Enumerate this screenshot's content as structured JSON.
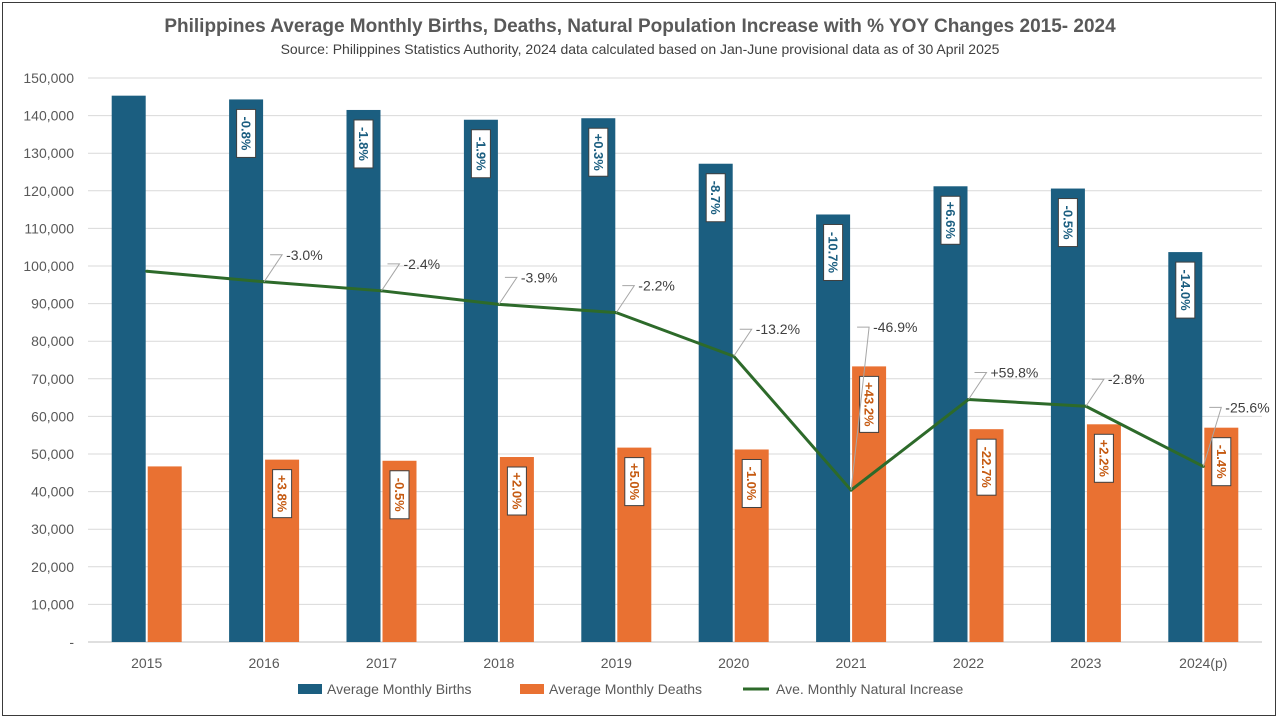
{
  "chart_data": {
    "type": "bar",
    "title": "Philippines Average Monthly Births, Deaths, Natural Population Increase with % YOY Changes 2015- 2024",
    "subtitle": "Source: Philippines Statistics Authority, 2024 data calculated based on Jan-June provisional data as of 30 April 2025",
    "categories": [
      "2015",
      "2016",
      "2017",
      "2018",
      "2019",
      "2020",
      "2021",
      "2022",
      "2023",
      "2024(p)"
    ],
    "ylim": [
      0,
      150000
    ],
    "y_ticks": [
      {
        "value": 0,
        "label": "-"
      },
      {
        "value": 10000,
        "label": "10,000"
      },
      {
        "value": 20000,
        "label": "20,000"
      },
      {
        "value": 30000,
        "label": "30,000"
      },
      {
        "value": 40000,
        "label": "40,000"
      },
      {
        "value": 50000,
        "label": "50,000"
      },
      {
        "value": 60000,
        "label": "60,000"
      },
      {
        "value": 70000,
        "label": "70,000"
      },
      {
        "value": 80000,
        "label": "80,000"
      },
      {
        "value": 90000,
        "label": "90,000"
      },
      {
        "value": 100000,
        "label": "100,000"
      },
      {
        "value": 110000,
        "label": "110,000"
      },
      {
        "value": 120000,
        "label": "120,000"
      },
      {
        "value": 130000,
        "label": "130,000"
      },
      {
        "value": 140000,
        "label": "140,000"
      },
      {
        "value": 150000,
        "label": "150,000"
      }
    ],
    "grid": true,
    "legend_position": "bottom",
    "series": [
      {
        "name": "Average Monthly Births",
        "kind": "bar",
        "color": "#1b5e80",
        "values": [
          145300,
          144300,
          141500,
          138900,
          139300,
          127200,
          113700,
          121200,
          120600,
          103700
        ],
        "labels": [
          "",
          "-0.8%",
          "-1.8%",
          "-1.9%",
          "+0.3%",
          "-8.7%",
          "-10.7%",
          "+6.6%",
          "-0.5%",
          "-14.0%"
        ]
      },
      {
        "name": "Average Monthly Deaths",
        "kind": "bar",
        "color": "#e97132",
        "values": [
          46700,
          48500,
          48200,
          49200,
          51700,
          51200,
          73300,
          56600,
          57900,
          57000
        ],
        "labels": [
          "",
          "+3.8%",
          "-0.5%",
          "+2.0%",
          "+5.0%",
          "-1.0%",
          "+43.2%",
          "-22.7%",
          "+2.2%",
          "-1.4%"
        ]
      },
      {
        "name": "Ave. Monthly Natural Increase",
        "kind": "line",
        "color": "#2d6a2a",
        "values": [
          98600,
          95800,
          93400,
          89800,
          87600,
          76000,
          40400,
          64500,
          62700,
          46700
        ],
        "labels": [
          "",
          "-3.0%",
          "-2.4%",
          "-3.9%",
          "-2.2%",
          "-13.2%",
          "-46.9%",
          "+59.8%",
          "-2.8%",
          "-25.6%"
        ]
      }
    ]
  }
}
